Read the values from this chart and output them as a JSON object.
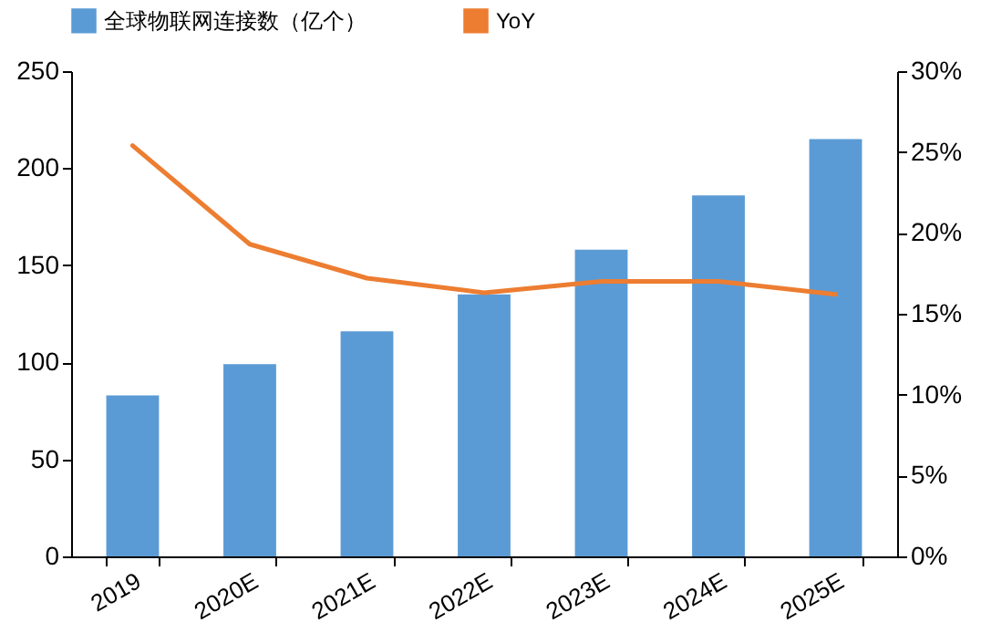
{
  "chart_data": {
    "type": "bar",
    "categories": [
      "2019",
      "2020E",
      "2021E",
      "2022E",
      "2023E",
      "2024E",
      "2025E"
    ],
    "series": [
      {
        "name": "全球物联网连接数（亿个）",
        "color": "#5b9bd5",
        "values": [
          83,
          99,
          116,
          135,
          158,
          186,
          215
        ]
      },
      {
        "name": "YoY",
        "type": "line",
        "axis": "y2",
        "color": "#ed7d31",
        "values": [
          25.4,
          19.3,
          17.2,
          16.3,
          17.0,
          17.0,
          16.2
        ]
      }
    ],
    "ylim": [
      0,
      250
    ],
    "yticks": [
      0,
      50,
      100,
      150,
      200,
      250
    ],
    "y2lim": [
      0,
      30
    ],
    "y2ticks": [
      {
        "value": 0,
        "label": "0%"
      },
      {
        "value": 5,
        "label": "5%"
      },
      {
        "value": 10,
        "label": "10%"
      },
      {
        "value": 15,
        "label": "15%"
      },
      {
        "value": 20,
        "label": "20%"
      },
      {
        "value": 25,
        "label": "25%"
      },
      {
        "value": 30,
        "label": "30%"
      }
    ],
    "legend": "top",
    "grid": false
  }
}
